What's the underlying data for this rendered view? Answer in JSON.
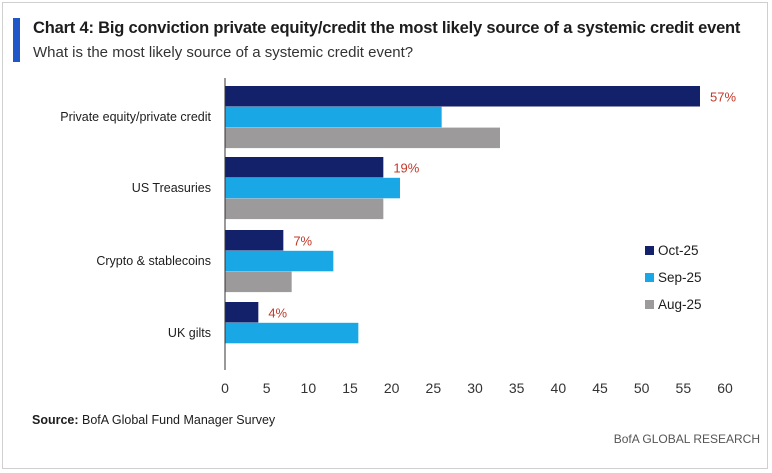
{
  "header": {
    "title": "Chart 4: Big conviction private equity/credit the most likely source of a systemic credit event",
    "subtitle": "What is the most likely source of a systemic credit event?"
  },
  "footer": {
    "source_prefix": "Source:",
    "source_text": " BofA Global Fund Manager Survey",
    "brand": "BofA GLOBAL RESEARCH"
  },
  "chart_data": {
    "type": "bar",
    "orientation": "horizontal",
    "categories": [
      "Private equity/private credit",
      "US Treasuries",
      "Crypto & stablecoins",
      "UK gilts"
    ],
    "series": [
      {
        "name": "Oct-25",
        "color": "#13216a",
        "values": [
          57,
          19,
          7,
          4
        ],
        "labels": [
          "57%",
          "19%",
          "7%",
          "4%"
        ]
      },
      {
        "name": "Sep-25",
        "color": "#1aa7e6",
        "values": [
          26,
          21,
          13,
          16
        ]
      },
      {
        "name": "Aug-25",
        "color": "#9c9a9a",
        "values": [
          33,
          19,
          8,
          null
        ]
      }
    ],
    "xlim": [
      0,
      60
    ],
    "xticks": [
      0,
      5,
      10,
      15,
      20,
      25,
      30,
      35,
      40,
      45,
      50,
      55,
      60
    ],
    "legend_position": "right",
    "grid": false
  }
}
